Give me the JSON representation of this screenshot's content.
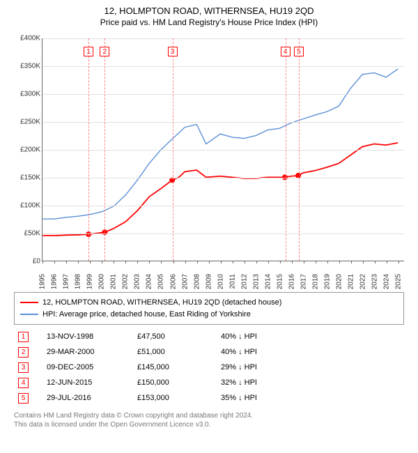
{
  "title": "12, HOLMPTON ROAD, WITHERNSEA, HU19 2QD",
  "subtitle": "Price paid vs. HM Land Registry's House Price Index (HPI)",
  "chart": {
    "type": "line",
    "background_color": "#ffffff",
    "grid_color": "#e0e0e0",
    "axis_color": "#666666",
    "label_fontsize": 10,
    "title_fontsize": 13,
    "x_years": [
      1995,
      1996,
      1997,
      1998,
      1999,
      2000,
      2001,
      2002,
      2003,
      2004,
      2005,
      2006,
      2007,
      2008,
      2009,
      2010,
      2011,
      2012,
      2013,
      2014,
      2015,
      2016,
      2017,
      2018,
      2019,
      2020,
      2021,
      2022,
      2023,
      2024,
      2025
    ],
    "xlim": [
      1995,
      2025.5
    ],
    "ylim": [
      0,
      400000
    ],
    "ytick_step": 50000,
    "yticks": [
      "£0",
      "£50K",
      "£100K",
      "£150K",
      "£200K",
      "£250K",
      "£300K",
      "£350K",
      "£400K"
    ],
    "series": [
      {
        "name": "property",
        "color": "#ff0000",
        "width": 1.8,
        "data": [
          [
            1995,
            45000
          ],
          [
            1996,
            45000
          ],
          [
            1997,
            46000
          ],
          [
            1998,
            46500
          ],
          [
            1998.87,
            47500
          ],
          [
            1999.5,
            49000
          ],
          [
            2000.24,
            51000
          ],
          [
            2001,
            58000
          ],
          [
            2002,
            70000
          ],
          [
            2003,
            90000
          ],
          [
            2004,
            115000
          ],
          [
            2005,
            130000
          ],
          [
            2005.94,
            145000
          ],
          [
            2006.5,
            150000
          ],
          [
            2007,
            160000
          ],
          [
            2008,
            163000
          ],
          [
            2008.8,
            150000
          ],
          [
            2010,
            152000
          ],
          [
            2011,
            150000
          ],
          [
            2012,
            148000
          ],
          [
            2013,
            148000
          ],
          [
            2014,
            150000
          ],
          [
            2015.45,
            150000
          ],
          [
            2016,
            152000
          ],
          [
            2016.58,
            153000
          ],
          [
            2017,
            158000
          ],
          [
            2018,
            162000
          ],
          [
            2019,
            168000
          ],
          [
            2020,
            175000
          ],
          [
            2021,
            190000
          ],
          [
            2022,
            205000
          ],
          [
            2023,
            210000
          ],
          [
            2024,
            208000
          ],
          [
            2025,
            212000
          ]
        ]
      },
      {
        "name": "hpi",
        "color": "#5b8fd6",
        "width": 1.4,
        "data": [
          [
            1995,
            75000
          ],
          [
            1996,
            75000
          ],
          [
            1997,
            78000
          ],
          [
            1998,
            80000
          ],
          [
            1999,
            83000
          ],
          [
            2000,
            88000
          ],
          [
            2001,
            98000
          ],
          [
            2002,
            118000
          ],
          [
            2003,
            145000
          ],
          [
            2004,
            175000
          ],
          [
            2005,
            200000
          ],
          [
            2006,
            220000
          ],
          [
            2007,
            240000
          ],
          [
            2008,
            245000
          ],
          [
            2008.8,
            210000
          ],
          [
            2010,
            228000
          ],
          [
            2011,
            222000
          ],
          [
            2012,
            220000
          ],
          [
            2013,
            225000
          ],
          [
            2014,
            235000
          ],
          [
            2015,
            238000
          ],
          [
            2016,
            248000
          ],
          [
            2017,
            255000
          ],
          [
            2018,
            262000
          ],
          [
            2019,
            268000
          ],
          [
            2020,
            278000
          ],
          [
            2021,
            310000
          ],
          [
            2022,
            335000
          ],
          [
            2023,
            338000
          ],
          [
            2024,
            330000
          ],
          [
            2025,
            345000
          ]
        ]
      }
    ],
    "markers": [
      {
        "n": "1",
        "year": 1998.87,
        "price": 47500
      },
      {
        "n": "2",
        "year": 2000.24,
        "price": 51000
      },
      {
        "n": "3",
        "year": 2005.94,
        "price": 145000
      },
      {
        "n": "4",
        "year": 2015.45,
        "price": 150000
      },
      {
        "n": "5",
        "year": 2016.58,
        "price": 153000
      }
    ]
  },
  "legend": {
    "series1": {
      "color": "#ff0000",
      "label": "12, HOLMPTON ROAD, WITHERNSEA, HU19 2QD (detached house)"
    },
    "series2": {
      "color": "#5b8fd6",
      "label": "HPI: Average price, detached house, East Riding of Yorkshire"
    }
  },
  "transactions": [
    {
      "n": "1",
      "date": "13-NOV-1998",
      "price": "£47,500",
      "diff": "40% ↓ HPI"
    },
    {
      "n": "2",
      "date": "29-MAR-2000",
      "price": "£51,000",
      "diff": "40% ↓ HPI"
    },
    {
      "n": "3",
      "date": "09-DEC-2005",
      "price": "£145,000",
      "diff": "29% ↓ HPI"
    },
    {
      "n": "4",
      "date": "12-JUN-2015",
      "price": "£150,000",
      "diff": "32% ↓ HPI"
    },
    {
      "n": "5",
      "date": "29-JUL-2016",
      "price": "£153,000",
      "diff": "35% ↓ HPI"
    }
  ],
  "footer": {
    "line1": "Contains HM Land Registry data © Crown copyright and database right 2024.",
    "line2": "This data is licensed under the Open Government Licence v3.0."
  }
}
